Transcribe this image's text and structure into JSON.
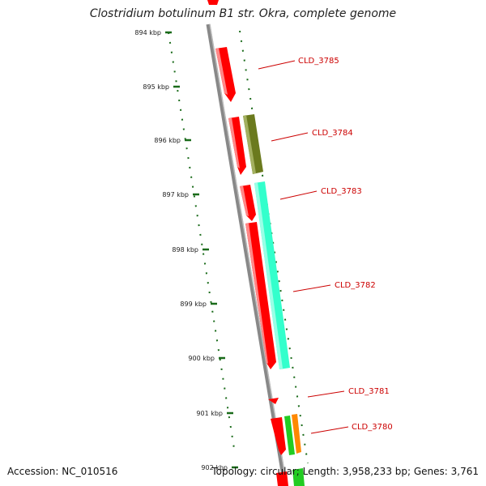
{
  "title": "Clostridium botulinum B1 str. Okra, complete genome",
  "footer": {
    "accession": "Accession: NC_010516",
    "summary": "Topology: circular; Length: 3,958,233 bp; Genes: 3,761"
  },
  "ticks": [
    "894 kbp",
    "895 kbp",
    "896 kbp",
    "897 kbp",
    "898 kbp",
    "899 kbp",
    "900 kbp",
    "901 kbp",
    "902 kbp"
  ],
  "genes": [
    {
      "label": "CLD_3785"
    },
    {
      "label": "CLD_3784"
    },
    {
      "label": "CLD_3783"
    },
    {
      "label": "CLD_3782"
    },
    {
      "label": "CLD_3781"
    },
    {
      "label": "CLD_3780"
    }
  ],
  "colors": {
    "forward_gene": "#ff0000",
    "olive_gene": "#6b7a1e",
    "aqua_gene": "#33ffcc",
    "green_gene": "#22cc22",
    "orange_gene": "#ff8800",
    "backbone": "#888888",
    "tick": "#1a6b1a",
    "label": "#cc0000"
  }
}
